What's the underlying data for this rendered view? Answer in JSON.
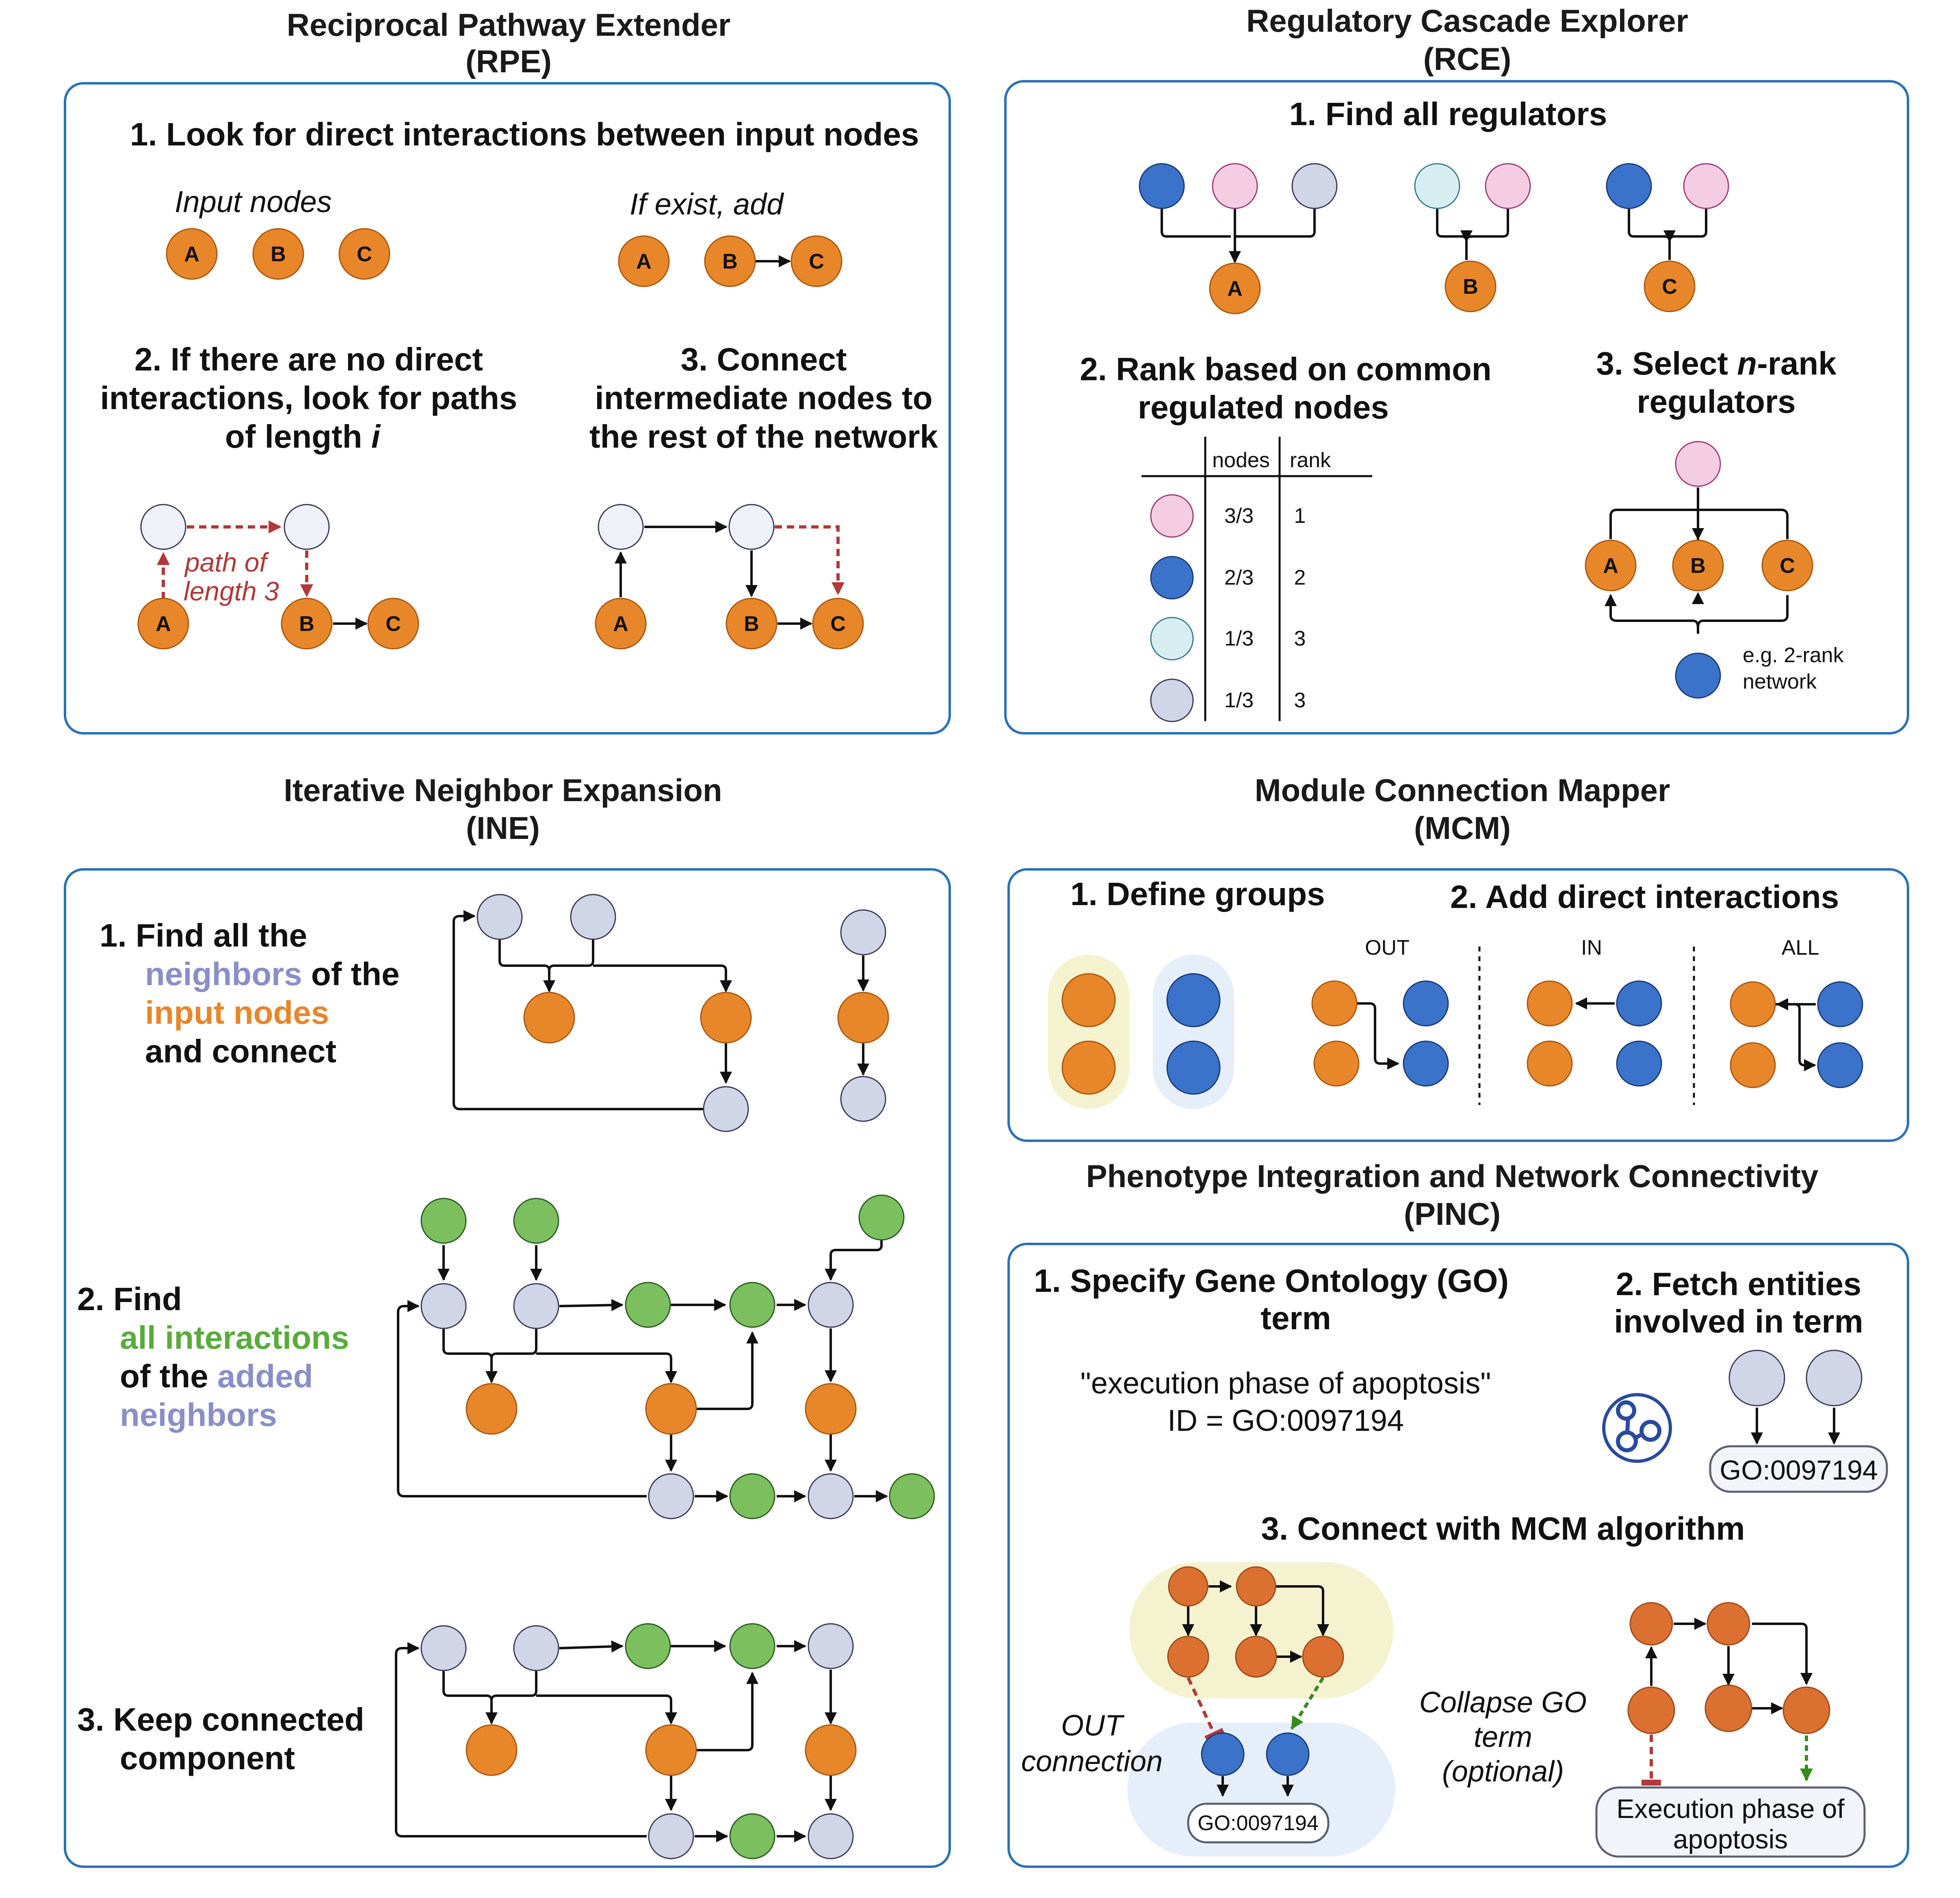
{
  "rpe": {
    "title": "Reciprocal Pathway Extender",
    "abbr": "(RPE)",
    "step1": "1.  Look for direct interactions between input nodes",
    "input_nodes_label": "Input nodes",
    "if_exist_label": "If exist, add",
    "step2_l1": "2. If there are no direct",
    "step2_l2": "interactions, look for paths",
    "step2_l3": "of length ",
    "step2_var": "i",
    "step3_l1": "3. Connect",
    "step3_l2": "intermediate nodes to",
    "step3_l3": "the rest of the network",
    "path_l1": "path of",
    "path_l2": "length 3",
    "node_a": "A",
    "node_b": "B",
    "node_c": "C"
  },
  "rce": {
    "title": "Regulatory Cascade Explorer",
    "abbr": "(RCE)",
    "step1": "1.  Find all regulators",
    "step2_l1": "2. Rank based on common",
    "step2_l2": "regulated nodes",
    "step3_l1_pre": "3. Select ",
    "step3_l1_var": "n",
    "step3_l1_post": "-rank",
    "step3_l2": "regulators",
    "table_headers": [
      "nodes",
      "rank"
    ],
    "table_rows": [
      {
        "nodes": "3/3",
        "rank": "1"
      },
      {
        "nodes": "2/3",
        "rank": "2"
      },
      {
        "nodes": "1/3",
        "rank": "3"
      },
      {
        "nodes": "1/3",
        "rank": "3"
      }
    ],
    "example_l1": "e.g. 2-rank",
    "example_l2": "network"
  },
  "ine": {
    "title": "Iterative Neighbor Expansion",
    "abbr": "(INE)",
    "s1_l1": "1.  Find all the",
    "s1_neighbors": "neighbors",
    "s1_of_the": " of the",
    "s1_input": "input nodes",
    "s1_l4": "and connect",
    "s2_l1": "2.  Find",
    "s2_all": "all interactions",
    "s2_of_the": "of the ",
    "s2_added": "added",
    "s2_neighbors": "neighbors",
    "s3_l1": "3.  Keep connected",
    "s3_l2": "component"
  },
  "mcm": {
    "title": "Module Connection Mapper",
    "abbr": "(MCM)",
    "step1": "1.  Define groups",
    "step2": "2. Add direct interactions",
    "modes": [
      "OUT",
      "IN",
      "ALL"
    ]
  },
  "pinc": {
    "title": "Phenotype Integration and Network Connectivity",
    "abbr": "(PINC)",
    "step1_l1": "1.  Specify Gene Ontology (GO)",
    "step1_l2": "term",
    "go_name": "\"execution phase of apoptosis\"",
    "go_id_line": "ID = GO:0097194",
    "step2_l1": "2. Fetch entities",
    "step2_l2": "involved in term",
    "go_box": "GO:0097194",
    "step3": "3. Connect with MCM algorithm",
    "out_l1": "OUT",
    "out_l2": "connection",
    "collapse_l1": "Collapse GO",
    "collapse_l2": "term",
    "collapse_l3": "(optional)",
    "go_box_small": "GO:0097194",
    "exec_l1": "Execution phase of",
    "exec_l2": "apoptosis"
  },
  "colors": {
    "panel_border": "#2b72b5",
    "input_node": "#e8862a",
    "neighbor_node": "#d0d5e8",
    "added_node": "#7bbf5e",
    "regulator_blue": "#3a73c9",
    "regulator_pink": "#f5cde3",
    "regulator_cyan": "#d6eef2",
    "neighbor_text": "#8a8fc8",
    "input_text": "#e8862a",
    "interaction_text": "#5aab3e",
    "inhibit_red": "#b03a3a",
    "activate_green": "#3a8a22"
  }
}
